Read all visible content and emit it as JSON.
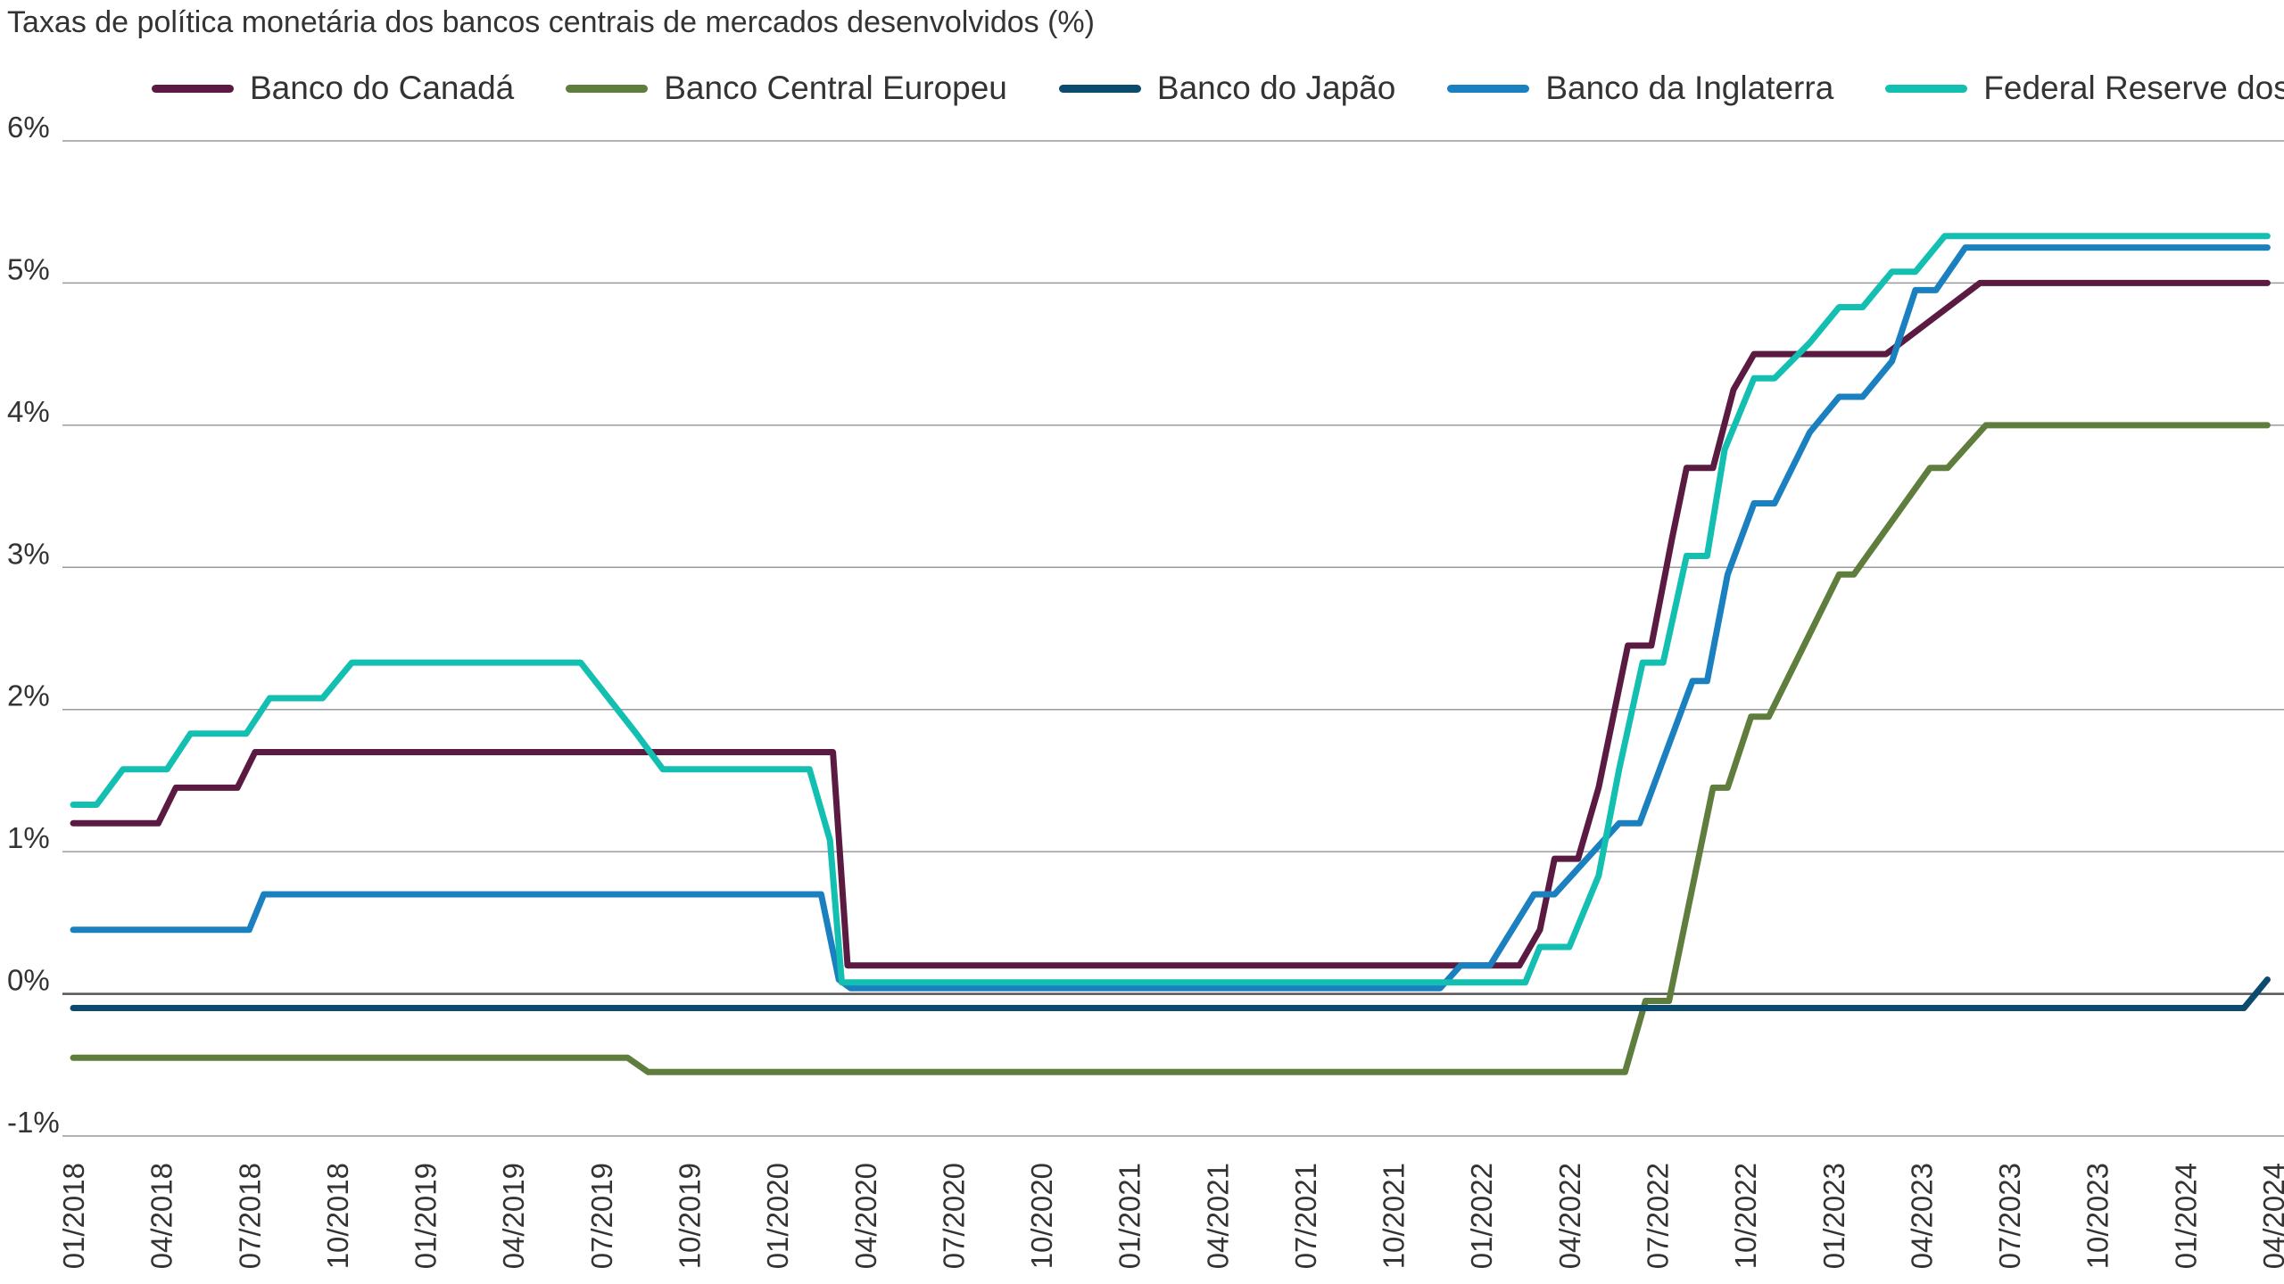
{
  "chart_data": {
    "type": "line",
    "title": "Taxas de política monetária dos bancos centrais de mercados desenvolvidos (%)",
    "xlabel": "",
    "ylabel": "",
    "ylim": [
      -1,
      6
    ],
    "y_ticks": [
      6,
      5,
      4,
      3,
      2,
      1,
      0,
      -1
    ],
    "y_tick_labels": [
      "6%",
      "5%",
      "4%",
      "3%",
      "2%",
      "1%",
      "0%",
      "-1%"
    ],
    "x_range": [
      "2018-01",
      "2024-04"
    ],
    "x_tick_labels": [
      "01/2018",
      "04/2018",
      "07/2018",
      "10/2018",
      "01/2019",
      "04/2019",
      "07/2019",
      "10/2019",
      "01/2020",
      "04/2020",
      "07/2020",
      "10/2020",
      "01/2021",
      "04/2021",
      "07/2021",
      "10/2021",
      "01/2022",
      "04/2022",
      "07/2022",
      "10/2022",
      "01/2023",
      "04/2023",
      "07/2023",
      "10/2023",
      "01/2024",
      "04/2024"
    ],
    "grid": "horizontal",
    "legend_position": "top",
    "series": [
      {
        "name": "Banco do Canadá",
        "color": "#5b1a42",
        "points": [
          [
            "2018-01",
            1.2
          ],
          [
            "2018-03.9",
            1.2
          ],
          [
            "2018-04.5",
            1.45
          ],
          [
            "2018-06.6",
            1.45
          ],
          [
            "2018-07.2",
            1.7
          ],
          [
            "2020-02.9",
            1.7
          ],
          [
            "2020-03.4",
            0.2
          ],
          [
            "2022-02.3",
            0.2
          ],
          [
            "2022-03",
            0.45
          ],
          [
            "2022-03.5",
            0.95
          ],
          [
            "2022-04.3",
            0.95
          ],
          [
            "2022-05",
            1.45
          ],
          [
            "2022-06",
            2.45
          ],
          [
            "2022-06.8",
            2.45
          ],
          [
            "2022-07.5",
            3.2
          ],
          [
            "2022-08",
            3.7
          ],
          [
            "2022-08.9",
            3.7
          ],
          [
            "2022-09.6",
            4.25
          ],
          [
            "2022-10.3",
            4.5
          ],
          [
            "2023-02.8",
            4.5
          ],
          [
            "2023-06",
            5.0
          ],
          [
            "2024-03.8",
            5.0
          ]
        ]
      },
      {
        "name": "Banco Central Europeu",
        "color": "#5f7d3c",
        "points": [
          [
            "2018-01",
            -0.45
          ],
          [
            "2019-07.9",
            -0.45
          ],
          [
            "2019-08.6",
            -0.55
          ],
          [
            "2022-05.9",
            -0.55
          ],
          [
            "2022-06.6",
            -0.05
          ],
          [
            "2022-07.4",
            -0.05
          ],
          [
            "2022-08.9",
            1.45
          ],
          [
            "2022-09.4",
            1.45
          ],
          [
            "2022-10.2",
            1.95
          ],
          [
            "2022-10.8",
            1.95
          ],
          [
            "2023-01.2",
            2.95
          ],
          [
            "2023-01.7",
            2.95
          ],
          [
            "2023-04.3",
            3.7
          ],
          [
            "2023-04.9",
            3.7
          ],
          [
            "2023-06.2",
            4.0
          ],
          [
            "2024-03.8",
            4.0
          ]
        ]
      },
      {
        "name": "Banco do Japão",
        "color": "#0a4b6e",
        "points": [
          [
            "2018-01",
            -0.1
          ],
          [
            "2024-03",
            -0.1
          ],
          [
            "2024-03.8",
            0.1
          ]
        ]
      },
      {
        "name": "Banco da Inglaterra",
        "color": "#1a80c0",
        "points": [
          [
            "2018-01",
            0.45
          ],
          [
            "2018-07",
            0.45
          ],
          [
            "2018-07.5",
            0.7
          ],
          [
            "2020-02.5",
            0.7
          ],
          [
            "2020-03.1",
            0.1
          ],
          [
            "2020-03.5",
            0.04
          ],
          [
            "2021-11.6",
            0.04
          ],
          [
            "2021-12.3",
            0.2
          ],
          [
            "2022-01.3",
            0.2
          ],
          [
            "2022-02.8",
            0.7
          ],
          [
            "2022-03.5",
            0.7
          ],
          [
            "2022-05.7",
            1.2
          ],
          [
            "2022-06.4",
            1.2
          ],
          [
            "2022-08.2",
            2.2
          ],
          [
            "2022-08.7",
            2.2
          ],
          [
            "2022-09.4",
            2.95
          ],
          [
            "2022-10.3",
            3.45
          ],
          [
            "2022-11",
            3.45
          ],
          [
            "2022-12.2",
            3.95
          ],
          [
            "2023-01.2",
            4.2
          ],
          [
            "2023-02",
            4.2
          ],
          [
            "2023-03",
            4.45
          ],
          [
            "2023-03.8",
            4.95
          ],
          [
            "2023-04.5",
            4.95
          ],
          [
            "2023-05.5",
            5.25
          ],
          [
            "2024-03.8",
            5.25
          ]
        ]
      },
      {
        "name": "Federal Reserve dos EUA",
        "color": "#13bfb0",
        "points": [
          [
            "2018-01",
            1.33
          ],
          [
            "2018-01.8",
            1.33
          ],
          [
            "2018-02.7",
            1.58
          ],
          [
            "2018-04.2",
            1.58
          ],
          [
            "2018-05",
            1.83
          ],
          [
            "2018-06.9",
            1.83
          ],
          [
            "2018-07.7",
            2.08
          ],
          [
            "2018-09.5",
            2.08
          ],
          [
            "2018-10.5",
            2.33
          ],
          [
            "2019-06.3",
            2.33
          ],
          [
            "2019-08.2",
            1.83
          ],
          [
            "2019-09.1",
            1.58
          ],
          [
            "2020-02.1",
            1.58
          ],
          [
            "2020-02.8",
            1.08
          ],
          [
            "2020-03.2",
            0.08
          ],
          [
            "2022-02.5",
            0.08
          ],
          [
            "2022-03",
            0.33
          ],
          [
            "2022-04",
            0.33
          ],
          [
            "2022-05",
            0.83
          ],
          [
            "2022-05.7",
            1.58
          ],
          [
            "2022-06.5",
            2.33
          ],
          [
            "2022-07.2",
            2.33
          ],
          [
            "2022-08",
            3.08
          ],
          [
            "2022-08.7",
            3.08
          ],
          [
            "2022-09.3",
            3.83
          ],
          [
            "2022-10.3",
            4.33
          ],
          [
            "2022-11",
            4.33
          ],
          [
            "2022-12.2",
            4.58
          ],
          [
            "2023-01.2",
            4.83
          ],
          [
            "2023-02",
            4.83
          ],
          [
            "2023-03",
            5.08
          ],
          [
            "2023-03.8",
            5.08
          ],
          [
            "2023-04.8",
            5.33
          ],
          [
            "2024-03.8",
            5.33
          ]
        ]
      }
    ]
  }
}
